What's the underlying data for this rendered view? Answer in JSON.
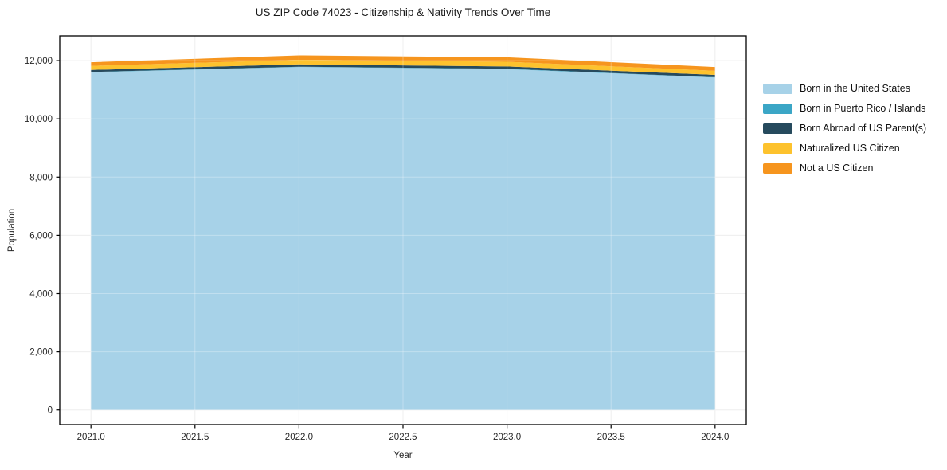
{
  "chart_data": {
    "type": "area",
    "stacked": true,
    "title": "US ZIP Code 74023 - Citizenship & Nativity Trends Over Time",
    "xlabel": "Year",
    "ylabel": "Population",
    "x": [
      2021,
      2022,
      2023,
      2024
    ],
    "series": [
      {
        "name": "Born in the United States",
        "color": "#A7D2E8",
        "values": [
          11600,
          11780,
          11710,
          11420
        ]
      },
      {
        "name": "Born in Puerto Rico / Islands",
        "color": "#3BA6C6",
        "values": [
          10,
          10,
          10,
          10
        ]
      },
      {
        "name": "Born Abroad of US Parent(s)",
        "color": "#264A5D",
        "values": [
          70,
          80,
          80,
          80
        ]
      },
      {
        "name": "Naturalized US Citizen",
        "color": "#FDC22D",
        "values": [
          140,
          160,
          160,
          140
        ]
      },
      {
        "name": "Not a US Citizen",
        "color": "#F6951E",
        "values": [
          125,
          150,
          155,
          130
        ]
      }
    ],
    "xlim": [
      2020.85,
      2024.15
    ],
    "ylim": [
      -500,
      12850
    ],
    "xticks": [
      2021.0,
      2021.5,
      2022.0,
      2022.5,
      2023.0,
      2023.5,
      2024.0
    ],
    "yticks": [
      0,
      2000,
      4000,
      6000,
      8000,
      10000,
      12000
    ],
    "grid": true,
    "grid_color": "#e9e9e9",
    "spine_color": "#000000",
    "tick_label_color": "#262626",
    "legend_position": "right-outside"
  }
}
